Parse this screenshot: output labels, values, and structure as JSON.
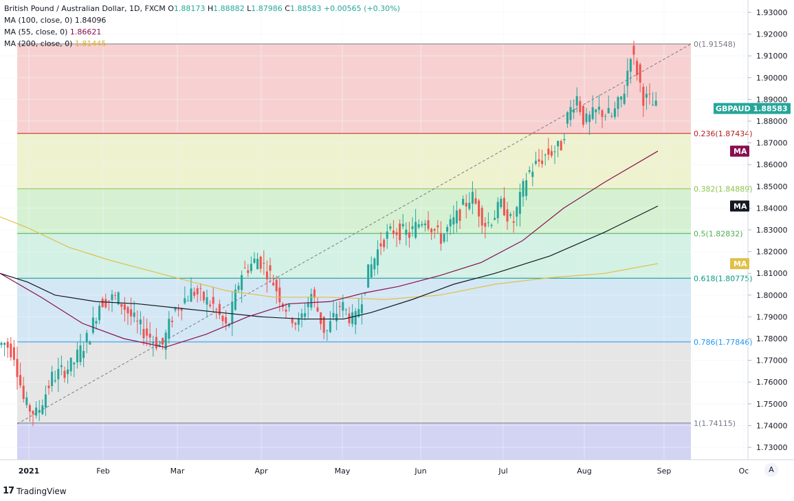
{
  "legend": {
    "symbol_line": "British Pound / Australian Dollar, 1D, FXCM",
    "o_label": "O",
    "o_val": "1.88173",
    "h_label": "H",
    "h_val": "1.88882",
    "l_label": "L",
    "l_val": "1.87986",
    "c_label": "C",
    "c_val": "1.88583",
    "change": "+0.00565 (+0.30%)",
    "ma100_label": "MA (100, close, 0)",
    "ma100_val": "1.84096",
    "ma55_label": "MA (55, close, 0)",
    "ma55_val": "1.86621",
    "ma200_label": "MA (200, close, 0)",
    "ma200_val": "1.81445"
  },
  "colors": {
    "up": "#26a69a",
    "down": "#ef5350",
    "ma100": "#131722",
    "ma55": "#880e4f",
    "ma200": "#e0c048",
    "fib0": "#787b86",
    "fib236": "#b71c1c",
    "fib382": "#8bc34a",
    "fib5": "#4caf50",
    "fib618": "#089981",
    "fib786": "#2196f3",
    "fib1": "#787b86"
  },
  "chart_data": {
    "type": "candlestick",
    "symbol": "GBPAUD",
    "last_price": "1.88583",
    "ylim": [
      1.7255,
      1.9345
    ],
    "y_ticks": [
      "1.93000",
      "1.92000",
      "1.91000",
      "1.90000",
      "1.89000",
      "1.88000",
      "1.87000",
      "1.86000",
      "1.85000",
      "1.84000",
      "1.83000",
      "1.82000",
      "1.81000",
      "1.80000",
      "1.79000",
      "1.78000",
      "1.77000",
      "1.76000",
      "1.75000",
      "1.74000",
      "1.73000"
    ],
    "x_ticks": [
      "2021",
      "Feb",
      "Mar",
      "Apr",
      "May",
      "Jun",
      "Jul",
      "Aug",
      "Sep",
      "Oc"
    ],
    "fib_levels": [
      {
        "level": "0",
        "price": 1.91548,
        "label": "0(1.91548)"
      },
      {
        "level": "0.236",
        "price": 1.87434,
        "label": "0.236(1.87434)"
      },
      {
        "level": "0.382",
        "price": 1.84889,
        "label": "0.382(1.84889)"
      },
      {
        "level": "0.5",
        "price": 1.82832,
        "label": "0.5(1.82832)"
      },
      {
        "level": "0.618",
        "price": 1.80775,
        "label": "0.618(1.80775)"
      },
      {
        "level": "0.786",
        "price": 1.77846,
        "label": "0.786(1.77846)"
      },
      {
        "level": "1",
        "price": 1.74115,
        "label": "1(1.74115)"
      }
    ],
    "ma_tags": [
      "MA",
      "MA",
      "MA"
    ],
    "ma100_end": 1.84096,
    "ma55_end": 1.86621,
    "ma200_end": 1.81445
  },
  "footer": {
    "logo": "17",
    "brand": "TradingView"
  },
  "controls": {
    "auto_button": "A"
  }
}
